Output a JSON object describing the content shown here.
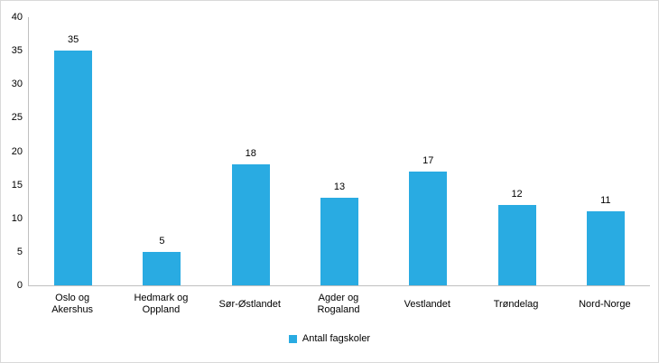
{
  "chart_data": {
    "type": "bar",
    "categories": [
      "Oslo og Akershus",
      "Hedmark og Oppland",
      "Sør-Østlandet",
      "Agder og Rogaland",
      "Vestlandet",
      "Trøndelag",
      "Nord-Norge"
    ],
    "values": [
      35,
      5,
      18,
      13,
      17,
      12,
      11
    ],
    "ylim": [
      0,
      40
    ],
    "ytick_step": 5,
    "grid": false,
    "legend": "Antall fagskoler",
    "legend_position": "bottom",
    "bar_color": "#29ABE2",
    "axis_color": "#bfbfbf",
    "category_wrap_after_word": [
      2,
      2,
      0,
      2,
      0,
      0,
      0
    ]
  }
}
